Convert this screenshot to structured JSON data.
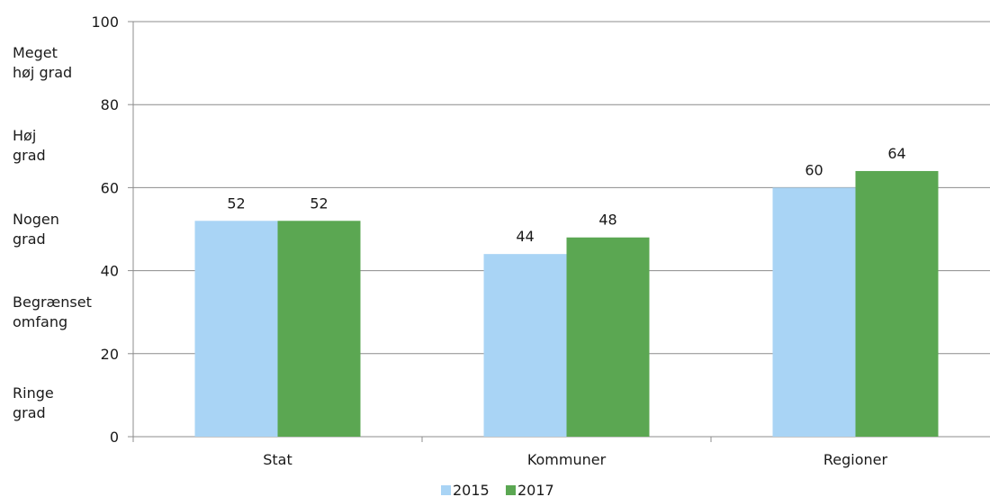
{
  "chart_data": {
    "type": "bar",
    "categories": [
      "Stat",
      "Kommuner",
      "Regioner"
    ],
    "series": [
      {
        "name": "2015",
        "values": [
          52,
          44,
          60
        ],
        "color": "#a9d4f5"
      },
      {
        "name": "2017",
        "values": [
          52,
          48,
          64
        ],
        "color": "#5ba752"
      }
    ],
    "ylim": [
      0,
      100
    ],
    "yticks": [
      0,
      20,
      40,
      60,
      80,
      100
    ],
    "grid": true,
    "legend": "bottom-center",
    "data_labels": true,
    "band_labels": [
      {
        "line1": "Meget",
        "line2": "høj grad",
        "center": 90
      },
      {
        "line1": "Høj",
        "line2": "grad",
        "center": 70
      },
      {
        "line1": "Nogen",
        "line2": "grad",
        "center": 50
      },
      {
        "line1": "Begrænset",
        "line2": "omfang",
        "center": 30
      },
      {
        "line1": "Ringe",
        "line2": "grad",
        "center": 8
      }
    ]
  }
}
